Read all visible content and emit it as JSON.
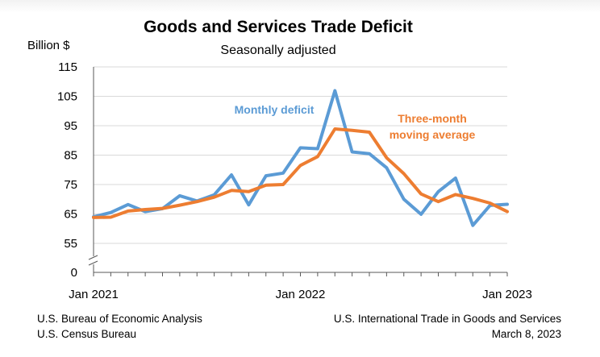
{
  "chart_data": {
    "type": "line",
    "title": "Goods and Services Trade Deficit",
    "subtitle": "Seasonally adjusted",
    "ylabel": "Billion $",
    "xlabel": "",
    "ylim": [
      55,
      115
    ],
    "y_ticks": [
      "115",
      "105",
      "95",
      "85",
      "75",
      "65",
      "55",
      "0"
    ],
    "axis_break": true,
    "x_tick_labels": [
      "Jan 2021",
      "Jan 2022",
      "Jan 2023"
    ],
    "x": [
      "Jan 2021",
      "Feb 2021",
      "Mar 2021",
      "Apr 2021",
      "May 2021",
      "Jun 2021",
      "Jul 2021",
      "Aug 2021",
      "Sep 2021",
      "Oct 2021",
      "Nov 2021",
      "Dec 2021",
      "Jan 2022",
      "Feb 2022",
      "Mar 2022",
      "Apr 2022",
      "May 2022",
      "Jun 2022",
      "Jul 2022",
      "Aug 2022",
      "Sep 2022",
      "Oct 2022",
      "Nov 2022",
      "Dec 2022",
      "Jan 2023"
    ],
    "grid": true,
    "series": [
      {
        "name": "Monthly deficit",
        "color": "#5b9bd5",
        "values": [
          64.0,
          65.5,
          68.2,
          65.8,
          66.8,
          71.2,
          69.4,
          71.5,
          78.3,
          68.1,
          78.0,
          78.9,
          87.5,
          87.2,
          106.9,
          86.1,
          85.5,
          80.7,
          70.0,
          64.9,
          72.6,
          77.2,
          61.1,
          67.9,
          68.3
        ]
      },
      {
        "name": "Three-month moving average",
        "color": "#ed7d31",
        "values": [
          63.8,
          63.9,
          66.0,
          66.5,
          66.9,
          68.0,
          69.2,
          70.7,
          73.0,
          72.6,
          74.8,
          75.0,
          81.5,
          84.5,
          93.9,
          93.4,
          92.8,
          84.1,
          78.7,
          71.8,
          69.2,
          71.6,
          70.3,
          68.7,
          65.8
        ]
      }
    ],
    "annotations": [
      {
        "text": "Monthly deficit",
        "series": "Monthly deficit"
      },
      {
        "text": "Three-month",
        "series": "Three-month moving average"
      },
      {
        "text": "moving average",
        "series": "Three-month moving average"
      }
    ]
  },
  "footer": {
    "source_line1": "U.S. Bureau of Economic Analysis",
    "source_line2": "U.S. Census Bureau",
    "report_line1": "U.S. International Trade in Goods and Services",
    "report_line2": "March 8, 2023"
  },
  "colors": {
    "gridline": "#d9d9d9",
    "axis": "#595959"
  }
}
